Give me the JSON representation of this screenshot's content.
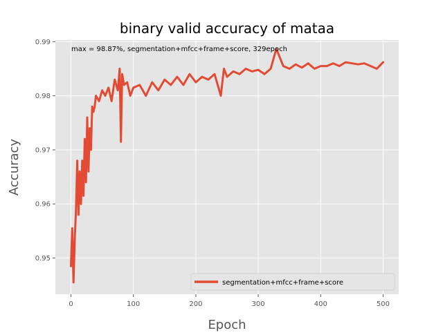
{
  "chart_data": {
    "type": "line",
    "title": "binary valid accuracy of mataa",
    "xlabel": "Epoch",
    "ylabel": "Accuracy",
    "xlim": [
      -25,
      525
    ],
    "ylim": [
      0.9433,
      0.9903
    ],
    "xticks": [
      0,
      100,
      200,
      300,
      400,
      500
    ],
    "xtick_labels": [
      "0",
      "100",
      "200",
      "300",
      "400",
      "500"
    ],
    "yticks": [
      0.95,
      0.96,
      0.97,
      0.98,
      0.99
    ],
    "ytick_labels": [
      "0.95",
      "0.96",
      "0.97",
      "0.98",
      "0.99"
    ],
    "grid": true,
    "legend_position": "lower-right",
    "annotation": "max  = 98.87%, segmentation+mfcc+frame+score, 329epoch",
    "series": [
      {
        "name": "segmentation+mfcc+frame+score",
        "color": "#e24a33",
        "epochs": 500,
        "max": {
          "epoch": 329,
          "value": 0.9887
        },
        "x": [
          0,
          2,
          4,
          6,
          8,
          10,
          12,
          14,
          16,
          18,
          20,
          22,
          24,
          26,
          28,
          30,
          32,
          34,
          36,
          38,
          40,
          45,
          50,
          55,
          60,
          65,
          70,
          75,
          78,
          80,
          82,
          85,
          90,
          95,
          100,
          110,
          120,
          130,
          140,
          150,
          160,
          170,
          180,
          190,
          200,
          210,
          220,
          230,
          240,
          245,
          250,
          260,
          270,
          280,
          290,
          300,
          310,
          320,
          329,
          340,
          350,
          360,
          370,
          380,
          390,
          400,
          410,
          420,
          430,
          440,
          450,
          460,
          470,
          480,
          490,
          500
        ],
        "y": [
          0.9485,
          0.9555,
          0.9455,
          0.9535,
          0.959,
          0.968,
          0.958,
          0.966,
          0.96,
          0.968,
          0.9615,
          0.972,
          0.964,
          0.976,
          0.966,
          0.974,
          0.97,
          0.978,
          0.977,
          0.978,
          0.98,
          0.979,
          0.981,
          0.98,
          0.9815,
          0.979,
          0.983,
          0.981,
          0.985,
          0.9715,
          0.984,
          0.982,
          0.9825,
          0.98,
          0.9815,
          0.982,
          0.98,
          0.9825,
          0.981,
          0.983,
          0.982,
          0.9835,
          0.982,
          0.984,
          0.9825,
          0.9835,
          0.983,
          0.984,
          0.98,
          0.985,
          0.9835,
          0.9845,
          0.984,
          0.985,
          0.9845,
          0.9848,
          0.984,
          0.985,
          0.9887,
          0.9855,
          0.985,
          0.9858,
          0.9852,
          0.986,
          0.985,
          0.9855,
          0.9855,
          0.986,
          0.9855,
          0.9862,
          0.986,
          0.9858,
          0.986,
          0.9855,
          0.985,
          0.9862
        ]
      }
    ]
  }
}
